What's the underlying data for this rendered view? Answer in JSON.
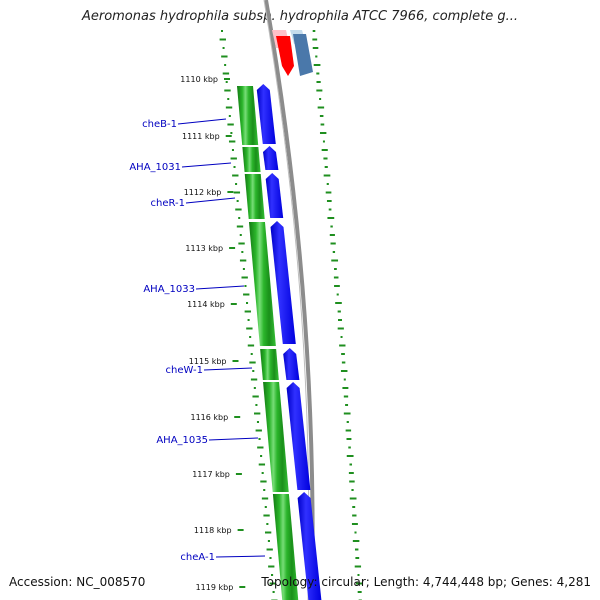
{
  "title": "Aeromonas hydrophila subsp. hydrophila ATCC 7966, complete g...",
  "accession_text": "Accession: NC_008570",
  "stats_text": "Topology: circular; Length: 4,744,448 bp; Genes: 4,281",
  "colors": {
    "backbone": "#8c8c8c",
    "cds_forward": "#0000ee",
    "cds_forward_highlight": "#5a5aff",
    "orf_green": "#22a822",
    "orf_green_light": "#77dd77",
    "orf_green_dark": "#137a13",
    "gc_dotted": "#1f8f1f",
    "rna_red": "#ff0000",
    "rna_pink": "#ffc0c8",
    "feature_steel": "#4a78aa",
    "feature_light": "#c5dced",
    "label_blue": "#0000c0"
  },
  "kbp_labels": [
    "1110 kbp",
    "1111 kbp",
    "1112 kbp",
    "1113 kbp",
    "1114 kbp",
    "1115 kbp",
    "1116 kbp",
    "1117 kbp",
    "1118 kbp",
    "1119 kbp"
  ],
  "gene_labels": [
    "cheB-1",
    "AHA_1031",
    "cheR-1",
    "AHA_1033",
    "cheW-1",
    "AHA_1035",
    "cheA-1"
  ]
}
